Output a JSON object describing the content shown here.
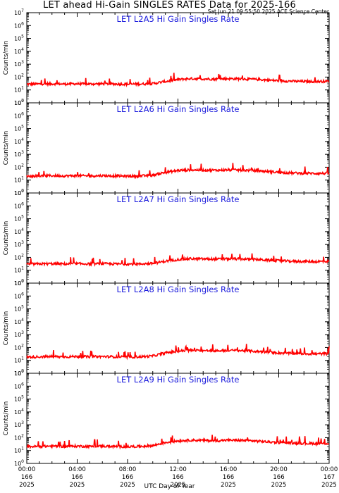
{
  "title": "LET ahead Hi-Gain SINGLES RATES Data for 2025-166",
  "timestamp": "Sat Jun 21 09:55:50 2025 ACE Science Center",
  "colors": {
    "series": "#ff0000",
    "panel_title": "#1a1adc",
    "axes": "#000000"
  },
  "chart_data": [
    {
      "type": "line",
      "title": "LET L2A5 Hi Gain Singles Rate",
      "ylabel": "Counts/min",
      "xlabel": "UTC Day of Year",
      "yscale": "log",
      "ylim": [
        1,
        10000000
      ],
      "xlim": [
        0,
        24
      ],
      "series": [
        {
          "x": [
            0,
            1,
            2,
            3,
            4,
            5,
            6,
            7,
            8,
            9,
            10,
            11,
            12,
            13,
            14,
            15,
            16,
            17,
            18,
            19,
            20,
            21,
            22,
            23,
            24
          ],
          "values": [
            28,
            29,
            30,
            29,
            30,
            29,
            30,
            29,
            28,
            29,
            31,
            45,
            65,
            75,
            72,
            70,
            75,
            72,
            68,
            60,
            52,
            48,
            45,
            45,
            48
          ]
        }
      ]
    },
    {
      "type": "line",
      "title": "LET L2A6 Hi Gain Singles Rate",
      "ylabel": "Counts/min",
      "xlabel": "UTC Day of Year",
      "yscale": "log",
      "ylim": [
        1,
        10000000
      ],
      "xlim": [
        0,
        24
      ],
      "series": [
        {
          "x": [
            0,
            1,
            2,
            3,
            4,
            5,
            6,
            7,
            8,
            9,
            10,
            11,
            12,
            13,
            14,
            15,
            16,
            17,
            18,
            19,
            20,
            21,
            22,
            23,
            24
          ],
          "values": [
            20,
            21,
            22,
            21,
            22,
            21,
            22,
            21,
            20,
            21,
            24,
            40,
            55,
            62,
            60,
            58,
            62,
            60,
            55,
            48,
            40,
            36,
            34,
            33,
            34
          ]
        }
      ]
    },
    {
      "type": "line",
      "title": "LET L2A7 Hi Gain Singles Rate",
      "ylabel": "Counts/min",
      "xlabel": "UTC Day of Year",
      "yscale": "log",
      "ylim": [
        1,
        10000000
      ],
      "xlim": [
        0,
        24
      ],
      "series": [
        {
          "x": [
            0,
            1,
            2,
            3,
            4,
            5,
            6,
            7,
            8,
            9,
            10,
            11,
            12,
            13,
            14,
            15,
            16,
            17,
            18,
            19,
            20,
            21,
            22,
            23,
            24
          ],
          "values": [
            30,
            31,
            32,
            31,
            32,
            31,
            32,
            31,
            30,
            31,
            34,
            50,
            68,
            78,
            76,
            72,
            78,
            75,
            70,
            62,
            55,
            50,
            48,
            47,
            50
          ]
        }
      ]
    },
    {
      "type": "line",
      "title": "LET L2A8 Hi Gain Singles Rate",
      "ylabel": "Counts/min",
      "xlabel": "UTC Day of Year",
      "yscale": "log",
      "ylim": [
        1,
        10000000
      ],
      "xlim": [
        0,
        24
      ],
      "series": [
        {
          "x": [
            0,
            1,
            2,
            3,
            4,
            5,
            6,
            7,
            8,
            9,
            10,
            11,
            12,
            13,
            14,
            15,
            16,
            17,
            18,
            19,
            20,
            21,
            22,
            23,
            24
          ],
          "values": [
            18,
            19,
            20,
            19,
            20,
            19,
            20,
            19,
            18,
            19,
            22,
            38,
            52,
            60,
            58,
            55,
            60,
            58,
            52,
            45,
            38,
            35,
            33,
            32,
            34
          ]
        }
      ]
    },
    {
      "type": "line",
      "title": "LET L2A9 Hi Gain Singles Rate",
      "ylabel": "Counts/min",
      "xlabel": "UTC Day of Year",
      "yscale": "log",
      "ylim": [
        1,
        10000000
      ],
      "xlim": [
        0,
        24
      ],
      "series": [
        {
          "x": [
            0,
            1,
            2,
            3,
            4,
            5,
            6,
            7,
            8,
            9,
            10,
            11,
            12,
            13,
            14,
            15,
            16,
            17,
            18,
            19,
            20,
            21,
            22,
            23,
            24
          ],
          "values": [
            20,
            21,
            22,
            21,
            22,
            21,
            22,
            21,
            20,
            21,
            24,
            42,
            56,
            64,
            62,
            58,
            64,
            62,
            56,
            48,
            42,
            38,
            36,
            35,
            36
          ]
        }
      ]
    }
  ],
  "y_tick_labels": [
    "10",
    "10",
    "10",
    "10",
    "10",
    "10",
    "10",
    "10"
  ],
  "y_tick_exponents": [
    "0",
    "1",
    "2",
    "3",
    "4",
    "5",
    "6",
    "7"
  ],
  "x_ticks": [
    {
      "time": "00:00",
      "day": "166",
      "year": "2025"
    },
    {
      "time": "04:00",
      "day": "166",
      "year": "2025"
    },
    {
      "time": "08:00",
      "day": "166",
      "year": "2025"
    },
    {
      "time": "12:00",
      "day": "166",
      "year": "2025"
    },
    {
      "time": "16:00",
      "day": "166",
      "year": "2025"
    },
    {
      "time": "20:00",
      "day": "166",
      "year": "2025"
    },
    {
      "time": "00:00",
      "day": "167",
      "year": "2025"
    }
  ],
  "x_axis_title": "UTC Day of Year"
}
